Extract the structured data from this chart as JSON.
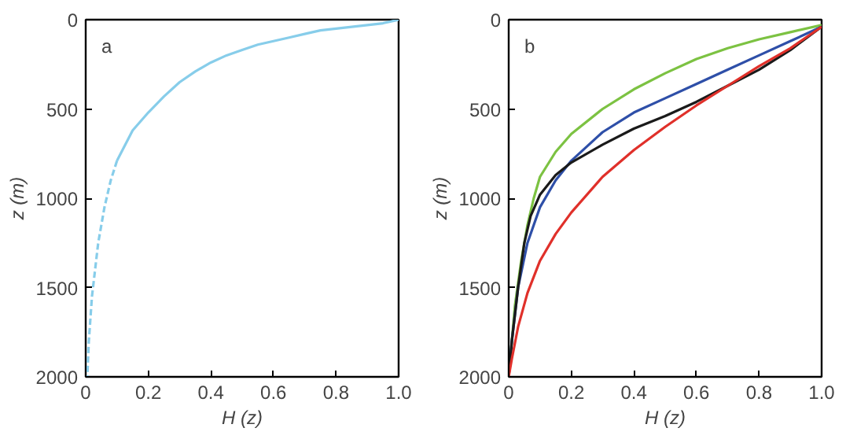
{
  "chart_data": [
    {
      "type": "line",
      "xlabel": "H (z)",
      "ylabel": "z (m)",
      "annotations": [
        "a"
      ],
      "xlim": [
        0,
        1.0
      ],
      "ylim": [
        2000,
        0
      ],
      "xticks": [
        0,
        0.2,
        0.4,
        0.6,
        0.8,
        {
          "value": 1.0,
          "label": "1.0"
        }
      ],
      "yticks": [
        0,
        500,
        1000,
        1500,
        2000
      ],
      "grid": false,
      "series": [
        {
          "color": "#87cdea",
          "line_style": "solid",
          "x": [
            1.0,
            0.95,
            0.9,
            0.85,
            0.8,
            0.75,
            0.7,
            0.65,
            0.6,
            0.55,
            0.5,
            0.45,
            0.4,
            0.35,
            0.3,
            0.25,
            0.2,
            0.15,
            0.1
          ],
          "values": [
            0,
            20,
            30,
            40,
            50,
            60,
            80,
            100,
            120,
            140,
            170,
            200,
            240,
            290,
            350,
            430,
            520,
            620,
            790
          ]
        },
        {
          "color": "#87cdea",
          "line_style": "dashed",
          "x": [
            0.1,
            0.08,
            0.06,
            0.04,
            0.03,
            0.02,
            0.01,
            0.005
          ],
          "values": [
            790,
            900,
            1050,
            1250,
            1400,
            1550,
            1800,
            2000
          ]
        }
      ]
    },
    {
      "type": "line",
      "xlabel": "H (z)",
      "ylabel": "z (m)",
      "annotations": [
        "b"
      ],
      "xlim": [
        0,
        1.0
      ],
      "ylim": [
        2000,
        0
      ],
      "xticks": [
        0,
        0.2,
        0.4,
        0.6,
        0.8,
        {
          "value": 1.0,
          "label": "1.0"
        }
      ],
      "yticks": [
        0,
        500,
        1000,
        1500,
        2000
      ],
      "grid": false,
      "series": [
        {
          "color": "#7cc242",
          "line_style": "solid",
          "x": [
            1.0,
            0.9,
            0.8,
            0.7,
            0.6,
            0.5,
            0.4,
            0.3,
            0.2,
            0.15,
            0.1,
            0.08,
            0.06,
            0.04,
            0.02,
            0.01,
            0
          ],
          "values": [
            30,
            70,
            110,
            160,
            220,
            300,
            390,
            500,
            640,
            740,
            880,
            1000,
            1150,
            1350,
            1600,
            1800,
            2000
          ]
        },
        {
          "color": "#2e4fa8",
          "line_style": "solid",
          "x": [
            1.0,
            0.9,
            0.8,
            0.7,
            0.6,
            0.5,
            0.4,
            0.3,
            0.2,
            0.15,
            0.1,
            0.06,
            0.03,
            0.01,
            0
          ],
          "values": [
            40,
            120,
            200,
            280,
            360,
            440,
            520,
            630,
            790,
            900,
            1050,
            1250,
            1500,
            1800,
            2000
          ]
        },
        {
          "color": "#1a1a1a",
          "line_style": "solid",
          "x": [
            1.0,
            0.9,
            0.8,
            0.7,
            0.6,
            0.5,
            0.4,
            0.3,
            0.2,
            0.15,
            0.1,
            0.07,
            0.05,
            0.03,
            0.01,
            0
          ],
          "values": [
            40,
            170,
            280,
            370,
            460,
            540,
            610,
            700,
            800,
            870,
            980,
            1100,
            1250,
            1500,
            1800,
            2000
          ]
        },
        {
          "color": "#e0302a",
          "line_style": "solid",
          "x": [
            1.0,
            0.9,
            0.8,
            0.7,
            0.6,
            0.5,
            0.4,
            0.3,
            0.2,
            0.15,
            0.1,
            0.06,
            0.03,
            0.01,
            0
          ],
          "values": [
            40,
            160,
            260,
            370,
            480,
            600,
            730,
            880,
            1080,
            1200,
            1350,
            1530,
            1720,
            1900,
            2000
          ]
        }
      ]
    }
  ]
}
